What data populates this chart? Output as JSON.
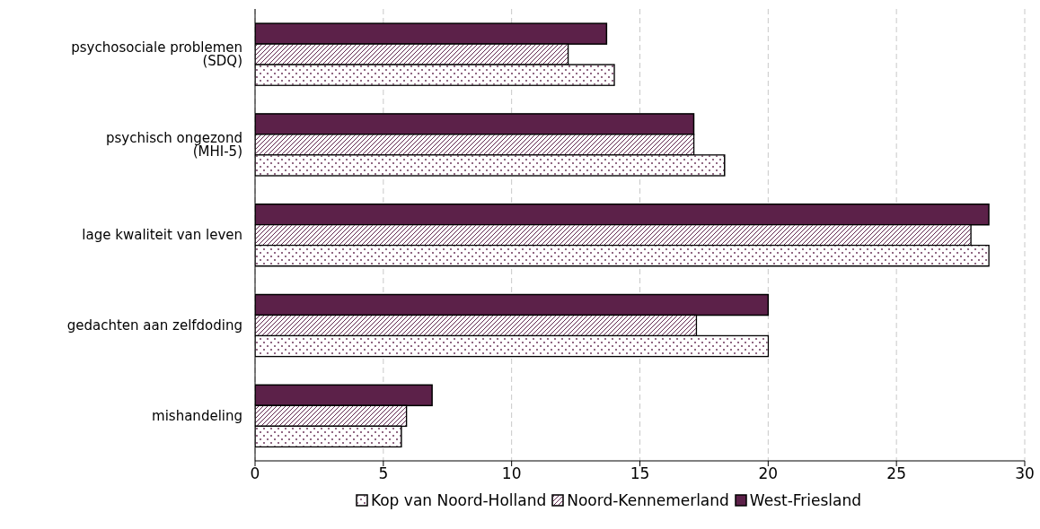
{
  "chart_data": {
    "type": "bar",
    "orientation": "horizontal",
    "categories": [
      "psychosociale problemen (SDQ)",
      "psychisch ongezond (MHI-5)",
      "lage kwaliteit van leven",
      "gedachten aan zelfdoding",
      "mishandeling"
    ],
    "series": [
      {
        "name": "Kop van Noord-Holland",
        "color": "#f4eef2",
        "values": [
          14.0,
          18.3,
          28.6,
          20.0,
          5.7
        ]
      },
      {
        "name": "Noord-Kennemerland",
        "color": "#cbb3c4",
        "values": [
          12.2,
          17.1,
          27.9,
          17.2,
          5.9
        ]
      },
      {
        "name": "West-Friesland",
        "color": "#5c2149",
        "values": [
          13.7,
          17.1,
          28.6,
          20.0,
          6.9
        ]
      }
    ],
    "xlim": [
      0,
      30
    ],
    "xticks": [
      0,
      5,
      10,
      15,
      20,
      25,
      30
    ],
    "grid": "x",
    "legend": "bottom"
  }
}
